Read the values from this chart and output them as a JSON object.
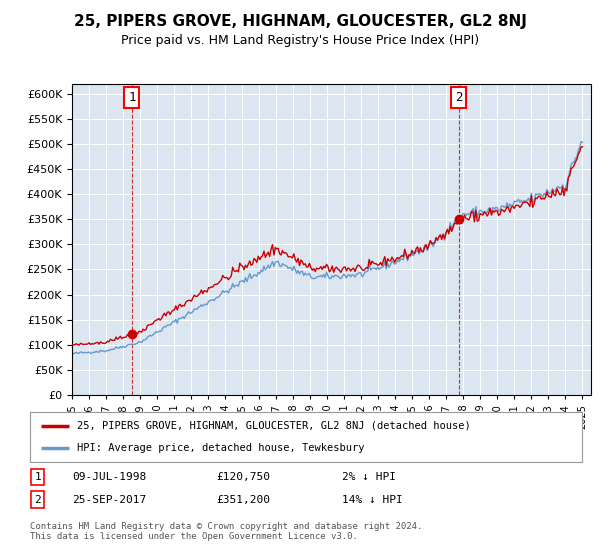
{
  "title": "25, PIPERS GROVE, HIGHNAM, GLOUCESTER, GL2 8NJ",
  "subtitle": "Price paid vs. HM Land Registry's House Price Index (HPI)",
  "ylim": [
    0,
    620000
  ],
  "yticks": [
    0,
    50000,
    100000,
    150000,
    200000,
    250000,
    300000,
    350000,
    400000,
    450000,
    500000,
    550000,
    600000
  ],
  "xlim_start": 1995.0,
  "xlim_end": 2025.5,
  "bg_color": "#dce6f1",
  "line_color_red": "#cc0000",
  "line_color_blue": "#6699cc",
  "point1_x": 1998.52,
  "point1_y": 120750,
  "point1_label": "1",
  "point2_x": 2017.73,
  "point2_y": 351200,
  "point2_label": "2",
  "legend_red": "25, PIPERS GROVE, HIGHNAM, GLOUCESTER, GL2 8NJ (detached house)",
  "legend_blue": "HPI: Average price, detached house, Tewkesbury",
  "row1_date": "09-JUL-1998",
  "row1_price": "£120,750",
  "row1_hpi": "2% ↓ HPI",
  "row2_date": "25-SEP-2017",
  "row2_price": "£351,200",
  "row2_hpi": "14% ↓ HPI",
  "footnote": "Contains HM Land Registry data © Crown copyright and database right 2024.\nThis data is licensed under the Open Government Licence v3.0.",
  "hpi_key_years": [
    1995,
    1997,
    1999,
    2001,
    2003,
    2005,
    2007,
    2009,
    2010,
    2012,
    2014,
    2016,
    2018,
    2020,
    2022,
    2024,
    2025
  ],
  "hpi_key_vals": [
    82000,
    88000,
    105000,
    145000,
    185000,
    225000,
    265000,
    235000,
    235000,
    240000,
    265000,
    295000,
    360000,
    370000,
    390000,
    420000,
    510000
  ]
}
